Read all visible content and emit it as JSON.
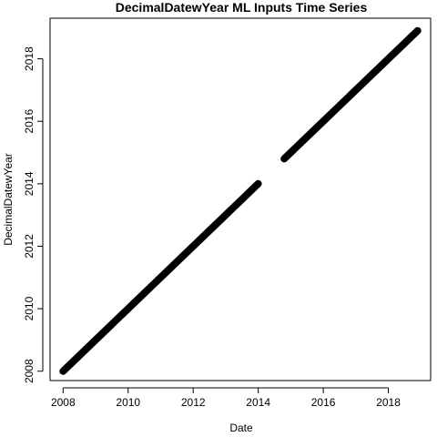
{
  "chart_data": {
    "type": "line",
    "title": "DecimalDatewYear ML Inputs Time Series",
    "xlabel": "Date",
    "ylabel": "DecimalDatewYear",
    "xlim": [
      2007.6,
      2019.3
    ],
    "ylim": [
      2007.7,
      2019.3
    ],
    "x_ticks": [
      2008,
      2010,
      2012,
      2014,
      2016,
      2018
    ],
    "y_ticks": [
      2008,
      2010,
      2012,
      2014,
      2016,
      2018
    ],
    "x_tick_labels": [
      "2008",
      "2010",
      "2012",
      "2014",
      "2016",
      "2018"
    ],
    "y_tick_labels": [
      "2008",
      "2010",
      "2012",
      "2014",
      "2016",
      "2018"
    ],
    "grid": false,
    "series": [
      {
        "x": [
          2008.0,
          2014.0
        ],
        "y": [
          2008.0,
          2014.0
        ]
      },
      {
        "x": [
          2014.8,
          2018.9
        ],
        "y": [
          2014.8,
          2018.9
        ]
      }
    ],
    "color": "#000000"
  }
}
